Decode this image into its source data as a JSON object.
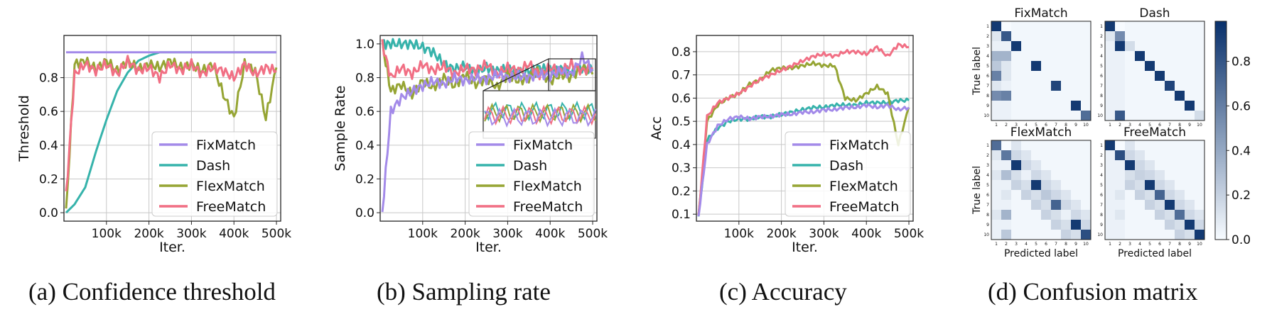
{
  "colors": {
    "FixMatch": "#a38ae9",
    "Dash": "#36b3ab",
    "FlexMatch": "#96a534",
    "FreeMatch": "#f16f84"
  },
  "legend": [
    "FixMatch",
    "Dash",
    "FlexMatch",
    "FreeMatch"
  ],
  "captions": [
    "(a) Confidence threshold",
    "(b) Sampling rate",
    "(c) Accuracy",
    "(d) Confusion matrix"
  ],
  "chart_data": [
    {
      "type": "line",
      "title": "",
      "xlabel": "Iter.",
      "ylabel": "Threshold",
      "xlim": [
        0,
        510000
      ],
      "ylim": [
        -0.05,
        1.05
      ],
      "xticks": [
        "100k",
        "200k",
        "300k",
        "400k",
        "500k"
      ],
      "yticks": [
        "0.0",
        "0.2",
        "0.4",
        "0.6",
        "0.8"
      ],
      "x": [
        5000,
        25000,
        50000,
        75000,
        100000,
        125000,
        150000,
        175000,
        200000,
        225000,
        250000,
        275000,
        300000,
        325000,
        350000,
        375000,
        400000,
        425000,
        450000,
        475000,
        500000
      ],
      "series": [
        {
          "name": "FixMatch",
          "values": [
            0.95,
            0.95,
            0.95,
            0.95,
            0.95,
            0.95,
            0.95,
            0.95,
            0.95,
            0.95,
            0.95,
            0.95,
            0.95,
            0.95,
            0.95,
            0.95,
            0.95,
            0.95,
            0.95,
            0.95,
            0.95
          ]
        },
        {
          "name": "Dash",
          "values": [
            0.0,
            0.05,
            0.15,
            0.36,
            0.55,
            0.72,
            0.83,
            0.9,
            0.93,
            0.95,
            0.95,
            0.95,
            0.95,
            0.95,
            0.95,
            0.95,
            0.95,
            0.95,
            0.95,
            0.95,
            0.95
          ]
        },
        {
          "name": "FlexMatch",
          "values": [
            0.0,
            0.88,
            0.9,
            0.85,
            0.9,
            0.84,
            0.9,
            0.85,
            0.88,
            0.86,
            0.9,
            0.86,
            0.88,
            0.84,
            0.88,
            0.7,
            0.56,
            0.88,
            0.84,
            0.56,
            0.86
          ]
        },
        {
          "name": "FreeMatch",
          "values": [
            0.1,
            0.82,
            0.88,
            0.84,
            0.88,
            0.82,
            0.9,
            0.84,
            0.86,
            0.8,
            0.88,
            0.84,
            0.88,
            0.82,
            0.86,
            0.84,
            0.8,
            0.88,
            0.82,
            0.86,
            0.84
          ]
        }
      ]
    },
    {
      "type": "line",
      "title": "",
      "xlabel": "Iter.",
      "ylabel": "Sample Rate",
      "xlim": [
        0,
        510000
      ],
      "ylim": [
        -0.05,
        1.05
      ],
      "xticks": [
        "100k",
        "200k",
        "300k",
        "400k",
        "500k"
      ],
      "yticks": [
        "0.0",
        "0.2",
        "0.4",
        "0.6",
        "0.8",
        "1.0"
      ],
      "x": [
        5000,
        25000,
        50000,
        75000,
        100000,
        125000,
        150000,
        175000,
        200000,
        225000,
        250000,
        275000,
        300000,
        325000,
        350000,
        375000,
        400000,
        425000,
        450000,
        475000,
        500000
      ],
      "series": [
        {
          "name": "FixMatch",
          "values": [
            0.0,
            0.6,
            0.68,
            0.72,
            0.75,
            0.78,
            0.76,
            0.8,
            0.78,
            0.8,
            0.79,
            0.82,
            0.8,
            0.81,
            0.8,
            0.82,
            0.81,
            0.84,
            0.82,
            0.92,
            0.85
          ]
        },
        {
          "name": "Dash",
          "values": [
            1.0,
            1.0,
            1.0,
            1.0,
            0.98,
            0.95,
            0.88,
            0.85,
            0.87,
            0.83,
            0.86,
            0.84,
            0.85,
            0.83,
            0.84,
            0.86,
            0.84,
            0.85,
            0.83,
            0.86,
            0.84
          ]
        },
        {
          "name": "FlexMatch",
          "values": [
            1.0,
            0.72,
            0.76,
            0.7,
            0.78,
            0.74,
            0.8,
            0.75,
            0.82,
            0.76,
            0.8,
            0.74,
            0.82,
            0.78,
            0.8,
            0.84,
            0.78,
            0.82,
            0.8,
            0.86,
            0.82
          ]
        },
        {
          "name": "FreeMatch",
          "values": [
            1.0,
            0.8,
            0.86,
            0.82,
            0.88,
            0.84,
            0.87,
            0.82,
            0.86,
            0.84,
            0.88,
            0.82,
            0.86,
            0.84,
            0.88,
            0.82,
            0.86,
            0.84,
            0.88,
            0.84,
            0.86
          ]
        }
      ]
    },
    {
      "type": "line",
      "title": "",
      "xlabel": "Iter.",
      "ylabel": "Acc",
      "xlim": [
        0,
        510000
      ],
      "ylim": [
        0.07,
        0.87
      ],
      "xticks": [
        "100k",
        "200k",
        "300k",
        "400k",
        "500k"
      ],
      "yticks": [
        "0.1",
        "0.2",
        "0.3",
        "0.4",
        "0.5",
        "0.6",
        "0.7",
        "0.8"
      ],
      "x": [
        5000,
        25000,
        50000,
        75000,
        100000,
        125000,
        150000,
        175000,
        200000,
        225000,
        250000,
        275000,
        300000,
        325000,
        350000,
        375000,
        400000,
        425000,
        450000,
        475000,
        500000
      ],
      "series": [
        {
          "name": "FixMatch",
          "values": [
            0.09,
            0.4,
            0.48,
            0.51,
            0.52,
            0.51,
            0.52,
            0.52,
            0.53,
            0.53,
            0.54,
            0.54,
            0.55,
            0.55,
            0.56,
            0.56,
            0.57,
            0.56,
            0.57,
            0.55,
            0.56
          ]
        },
        {
          "name": "Dash",
          "values": [
            0.09,
            0.42,
            0.47,
            0.5,
            0.51,
            0.51,
            0.52,
            0.52,
            0.53,
            0.54,
            0.55,
            0.56,
            0.56,
            0.57,
            0.57,
            0.57,
            0.58,
            0.58,
            0.58,
            0.59,
            0.59
          ]
        },
        {
          "name": "FlexMatch",
          "values": [
            0.09,
            0.5,
            0.57,
            0.6,
            0.62,
            0.66,
            0.68,
            0.72,
            0.73,
            0.73,
            0.74,
            0.75,
            0.74,
            0.74,
            0.6,
            0.59,
            0.62,
            0.65,
            0.62,
            0.4,
            0.56
          ]
        },
        {
          "name": "FreeMatch",
          "values": [
            0.09,
            0.52,
            0.58,
            0.6,
            0.62,
            0.65,
            0.68,
            0.7,
            0.72,
            0.74,
            0.76,
            0.78,
            0.79,
            0.78,
            0.8,
            0.8,
            0.79,
            0.82,
            0.78,
            0.83,
            0.82
          ]
        }
      ]
    },
    {
      "type": "heatmap",
      "colorbar_ticks": [
        "0.0",
        "0.2",
        "0.4",
        "0.6",
        "0.8"
      ],
      "colorbar_range": [
        0,
        0.98
      ],
      "xlabel": "Predicted label",
      "ylabel": "True label",
      "labels": [
        "1",
        "2",
        "3",
        "4",
        "5",
        "6",
        "7",
        "8",
        "9",
        "10"
      ],
      "matrices": [
        {
          "title": "FixMatch",
          "diag": [
            0.95,
            0.8,
            0.95,
            0.02,
            0.95,
            0.02,
            0.9,
            0.02,
            0.95,
            0.7
          ],
          "col1": [
            0.95,
            0.1,
            0.05,
            0.35,
            0.25,
            0.6,
            0.1,
            0.55,
            0.05,
            0.05
          ],
          "col2": [
            0,
            0.8,
            0.05,
            0.35,
            0.1,
            0.1,
            0.05,
            0.6,
            0.05,
            0.05
          ]
        },
        {
          "title": "Dash",
          "diag": [
            0.95,
            0.55,
            0.15,
            0.95,
            0.95,
            0.95,
            0.9,
            0.95,
            0.95,
            0.15
          ],
          "col1": [
            0.95,
            0.1,
            0.05,
            0.05,
            0.05,
            0.05,
            0.05,
            0.05,
            0.05,
            0.05
          ],
          "col2": [
            0,
            0.55,
            0.95,
            0.05,
            0.05,
            0.05,
            0.05,
            0.05,
            0.05,
            0.8
          ]
        },
        {
          "title": "FlexMatch",
          "diag": [
            0.7,
            0.65,
            0.95,
            0.05,
            0.95,
            0.25,
            0.75,
            0.05,
            0.95,
            0.85
          ],
          "col1": [
            0.7,
            0.1,
            0.05,
            0.1,
            0.05,
            0.05,
            0.05,
            0.1,
            0.05,
            0.05
          ],
          "col2": [
            0,
            0.65,
            0.05,
            0.3,
            0.05,
            0.1,
            0.05,
            0.35,
            0.05,
            0.25
          ]
        },
        {
          "title": "FreeMatch",
          "diag": [
            0.95,
            0.85,
            0.95,
            0.2,
            0.95,
            0.75,
            0.95,
            0.7,
            0.95,
            0.95
          ],
          "col1": [
            0.95,
            0.05,
            0.05,
            0.05,
            0.05,
            0.05,
            0.05,
            0.05,
            0.05,
            0.05
          ],
          "col2": [
            0,
            0.85,
            0.05,
            0.05,
            0.05,
            0.1,
            0.05,
            0.1,
            0.05,
            0.05
          ]
        }
      ]
    }
  ]
}
